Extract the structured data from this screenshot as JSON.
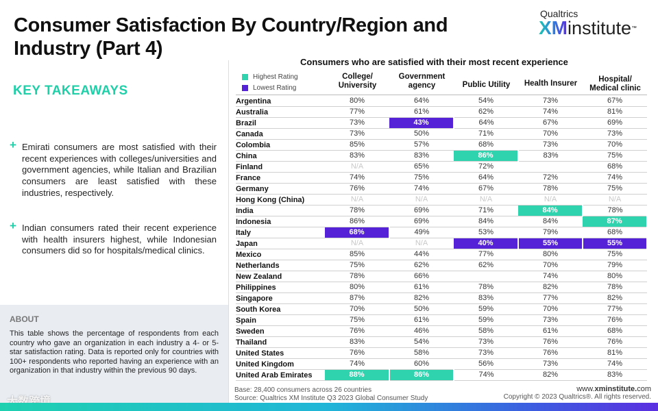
{
  "title": "Consumer Satisfaction By Country/Region and Industry (Part 4)",
  "logo": {
    "top": "Qualtrics",
    "xm": "XM",
    "inst": "institute",
    "tm": "™"
  },
  "key_takeaways": {
    "heading": "KEY TAKEAWAYS",
    "bullets": [
      "Emirati consumers are most satisfied with their recent experiences with colleges/universities and government agencies, while Italian and Brazilian consumers are least satisfied with these industries, respectively.",
      "Indian consumers rated their recent experience with health insurers highest, while Indonesian consumers did so for hospitals/medical clinics."
    ]
  },
  "about": {
    "heading": "ABOUT",
    "text": "This table shows the percentage of respondents from each country who gave an organization in each industry a 4- or 5-star satisfaction rating. Data is reported only for countries with 100+ respondents who reported having an experience with an organization in that industry within the previous 90 days."
  },
  "watermark": "大数跨境",
  "table": {
    "title": "Consumers who are satisfied with their most recent experience",
    "legend": [
      {
        "label": "Highest Rating",
        "color": "#2fd4ae"
      },
      {
        "label": "Lowest Rating",
        "color": "#5522d8"
      }
    ],
    "headers": [
      "College/ University",
      "Government agency",
      "Public Utility",
      "Health Insurer",
      "Hospital/ Medical clinic"
    ],
    "rows": [
      {
        "country": "Argentina",
        "values": [
          "80%",
          "64%",
          "54%",
          "73%",
          "67%"
        ]
      },
      {
        "country": "Australia",
        "values": [
          "77%",
          "61%",
          "62%",
          "74%",
          "81%"
        ]
      },
      {
        "country": "Brazil",
        "values": [
          "73%",
          "43%",
          "64%",
          "67%",
          "69%"
        ],
        "low": [
          1
        ]
      },
      {
        "country": "Canada",
        "values": [
          "73%",
          "50%",
          "71%",
          "70%",
          "73%"
        ]
      },
      {
        "country": "Colombia",
        "values": [
          "85%",
          "57%",
          "68%",
          "73%",
          "70%"
        ]
      },
      {
        "country": "China",
        "values": [
          "83%",
          "83%",
          "86%",
          "83%",
          "75%"
        ],
        "high": [
          2
        ]
      },
      {
        "country": "Finland",
        "values": [
          "N/A",
          "65%",
          "72%",
          "",
          "68%"
        ]
      },
      {
        "country": "France",
        "values": [
          "74%",
          "75%",
          "64%",
          "72%",
          "74%"
        ]
      },
      {
        "country": "Germany",
        "values": [
          "76%",
          "74%",
          "67%",
          "78%",
          "75%"
        ]
      },
      {
        "country": "Hong Kong (China)",
        "values": [
          "N/A",
          "N/A",
          "N/A",
          "N/A",
          "N/A"
        ]
      },
      {
        "country": "India",
        "values": [
          "78%",
          "69%",
          "71%",
          "84%",
          "78%"
        ],
        "high": [
          3
        ]
      },
      {
        "country": "Indonesia",
        "values": [
          "86%",
          "69%",
          "84%",
          "84%",
          "87%"
        ],
        "high": [
          4
        ]
      },
      {
        "country": "Italy",
        "values": [
          "68%",
          "49%",
          "53%",
          "79%",
          "68%"
        ],
        "low": [
          0
        ]
      },
      {
        "country": "Japan",
        "values": [
          "N/A",
          "N/A",
          "40%",
          "55%",
          "55%"
        ],
        "low": [
          2,
          3,
          4
        ]
      },
      {
        "country": "Mexico",
        "values": [
          "85%",
          "44%",
          "77%",
          "80%",
          "75%"
        ]
      },
      {
        "country": "Netherlands",
        "values": [
          "75%",
          "62%",
          "62%",
          "70%",
          "79%"
        ]
      },
      {
        "country": "New Zealand",
        "values": [
          "78%",
          "66%",
          "",
          "74%",
          "80%"
        ]
      },
      {
        "country": "Philippines",
        "values": [
          "80%",
          "61%",
          "78%",
          "82%",
          "78%"
        ]
      },
      {
        "country": "Singapore",
        "values": [
          "87%",
          "82%",
          "83%",
          "77%",
          "82%"
        ]
      },
      {
        "country": "South Korea",
        "values": [
          "70%",
          "50%",
          "59%",
          "70%",
          "77%"
        ]
      },
      {
        "country": "Spain",
        "values": [
          "75%",
          "61%",
          "59%",
          "73%",
          "76%"
        ]
      },
      {
        "country": "Sweden",
        "values": [
          "76%",
          "46%",
          "58%",
          "61%",
          "68%"
        ]
      },
      {
        "country": "Thailand",
        "values": [
          "83%",
          "54%",
          "73%",
          "76%",
          "76%"
        ]
      },
      {
        "country": "United States",
        "values": [
          "76%",
          "58%",
          "73%",
          "76%",
          "81%"
        ]
      },
      {
        "country": "United Kingdom",
        "values": [
          "74%",
          "60%",
          "56%",
          "73%",
          "74%"
        ]
      },
      {
        "country": "United Arab Emirates",
        "values": [
          "88%",
          "86%",
          "74%",
          "82%",
          "83%"
        ],
        "high": [
          0,
          1
        ]
      }
    ]
  },
  "footer": {
    "base": "Base: 28,400 consumers across 26 countries",
    "source": "Source: Qualtrics XM Institute Q3 2023 Global Consumer Study",
    "url_prefix": "www.",
    "url_bold": "xminstitute.",
    "url_suffix": "com",
    "copyright": "Copyright © 2023 Qualtrics®. All rights reserved."
  }
}
